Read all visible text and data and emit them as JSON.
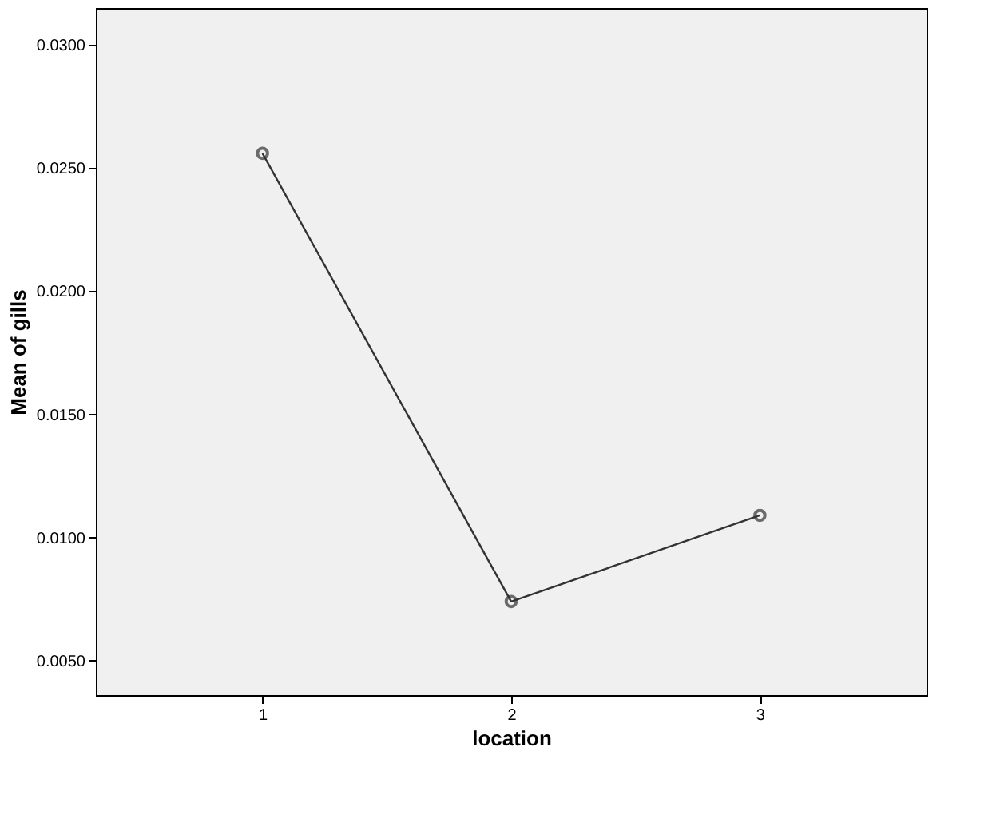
{
  "chart_data": {
    "type": "line",
    "xlabel": "location",
    "ylabel": "Mean of gills",
    "categories": [
      "1",
      "2",
      "3"
    ],
    "series": [
      {
        "color": "#333333",
        "values": [
          0.0256,
          0.0074,
          0.0109
        ]
      }
    ],
    "ylim": [
      0.0036,
      0.0315
    ],
    "yticks": [
      {
        "value": 0.005,
        "label": "0.0050"
      },
      {
        "value": 0.01,
        "label": "0.0100"
      },
      {
        "value": 0.015,
        "label": "0.0150"
      },
      {
        "value": 0.02,
        "label": "0.0200"
      },
      {
        "value": 0.025,
        "label": "0.0250"
      },
      {
        "value": 0.03,
        "label": "0.0300"
      }
    ],
    "marker": "circle",
    "line_style": "solid",
    "grid": false
  }
}
